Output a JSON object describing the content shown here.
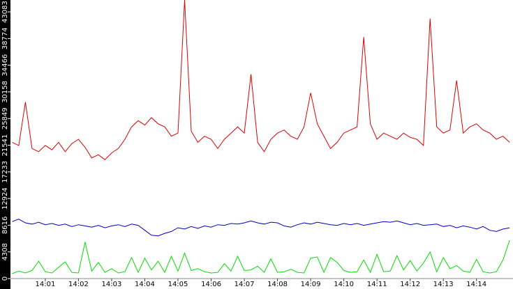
{
  "chart_data": {
    "type": "line",
    "x": [
      0,
      0.2,
      0.4,
      0.6,
      0.8,
      1,
      1.2,
      1.4,
      1.6,
      1.8,
      2,
      2.2,
      2.4,
      2.6,
      2.8,
      3,
      3.2,
      3.4,
      3.6,
      3.8,
      4,
      4.2,
      4.4,
      4.6,
      4.8,
      5,
      5.2,
      5.4,
      5.6,
      5.8,
      6,
      6.2,
      6.4,
      6.6,
      6.8,
      7,
      7.2,
      7.4,
      7.6,
      7.8,
      8,
      8.2,
      8.4,
      8.6,
      8.8,
      9,
      9.2,
      9.4,
      9.6,
      9.8,
      10,
      10.2,
      10.4,
      10.6,
      10.8,
      11,
      11.2,
      11.4,
      11.6,
      11.8,
      12,
      12.2,
      12.4,
      12.6,
      12.8,
      13,
      13.2,
      13.4,
      13.6,
      13.8,
      14,
      14.2,
      14.4,
      14.6,
      14.8,
      15
    ],
    "series": [
      {
        "color": "#e00000",
        "values": [
          22000,
          21500,
          28500,
          21000,
          20500,
          21500,
          20800,
          22000,
          20500,
          21800,
          22500,
          21200,
          19500,
          20000,
          19200,
          20300,
          21000,
          22500,
          24500,
          25500,
          24800,
          26000,
          25000,
          24500,
          23000,
          23500,
          45000,
          23800,
          22000,
          23000,
          22500,
          21000,
          22500,
          23500,
          24500,
          23500,
          33000,
          22000,
          20500,
          22500,
          23500,
          24000,
          23000,
          22500,
          24500,
          30000,
          25000,
          23000,
          21000,
          22000,
          23500,
          24000,
          24500,
          39000,
          25000,
          22500,
          23500,
          23000,
          22500,
          23500,
          22800,
          22500,
          21500,
          42000,
          24500,
          23500,
          24000,
          32000,
          23500,
          24500,
          25000,
          24000,
          23500,
          22500,
          23000,
          22000
        ]
      },
      {
        "color": "#0000c8",
        "values": [
          9200,
          9600,
          9000,
          8800,
          9100,
          8700,
          8900,
          8600,
          8800,
          8400,
          8700,
          8500,
          8300,
          8600,
          8200,
          8500,
          8700,
          8400,
          8800,
          8600,
          7800,
          7000,
          6900,
          7300,
          7600,
          8200,
          8000,
          8400,
          8100,
          8500,
          8300,
          8700,
          8600,
          8900,
          8800,
          9000,
          9300,
          9000,
          8800,
          9100,
          9000,
          8500,
          8300,
          8700,
          9000,
          8800,
          9100,
          8900,
          8700,
          8600,
          8900,
          8700,
          8900,
          8600,
          8800,
          9000,
          9200,
          9100,
          9300,
          9000,
          8700,
          8900,
          8600,
          8700,
          8800,
          8400,
          8600,
          8200,
          8500,
          8300,
          8000,
          8400,
          7800,
          7600,
          8000,
          8200
        ]
      },
      {
        "color": "#00e000",
        "values": [
          800,
          1200,
          900,
          1300,
          2800,
          1100,
          900,
          1800,
          2700,
          1000,
          900,
          5900,
          1200,
          2600,
          1000,
          1600,
          900,
          1100,
          3400,
          1000,
          3300,
          1400,
          2800,
          1000,
          3600,
          1200,
          4100,
          1300,
          1600,
          1100,
          900,
          1000,
          2400,
          1200,
          3600,
          1300,
          1400,
          2000,
          1000,
          3200,
          1000,
          1100,
          1500,
          1000,
          900,
          3300,
          3500,
          1000,
          3400,
          2600,
          1300,
          1000,
          1100,
          3000,
          1000,
          3900,
          1100,
          1200,
          3700,
          1400,
          2900,
          1200,
          2500,
          4300,
          1100,
          3400,
          1600,
          2100,
          1200,
          1000,
          3100,
          1100,
          900,
          1100,
          3000,
          6200
        ]
      }
    ],
    "xlim": [
      -0.05,
      15.1
    ],
    "xticks": [
      {
        "value": 1,
        "label": "14:01"
      },
      {
        "value": 2,
        "label": "14:02"
      },
      {
        "value": 3,
        "label": "14:03"
      },
      {
        "value": 4,
        "label": "14:04"
      },
      {
        "value": 5,
        "label": "14:05"
      },
      {
        "value": 6,
        "label": "14:06"
      },
      {
        "value": 7,
        "label": "14:07"
      },
      {
        "value": 8,
        "label": "14:08"
      },
      {
        "value": 9,
        "label": "14:09"
      },
      {
        "value": 10,
        "label": "14:10"
      },
      {
        "value": 11,
        "label": "14:11"
      },
      {
        "value": 12,
        "label": "14:12"
      },
      {
        "value": 13,
        "label": "14:13"
      },
      {
        "value": 14,
        "label": "14:14"
      }
    ],
    "ylim": [
      0,
      45000
    ],
    "yticks": [
      0,
      4308,
      8616,
      12924,
      17233,
      21541,
      25849,
      30158,
      34466,
      38774,
      43083
    ]
  }
}
